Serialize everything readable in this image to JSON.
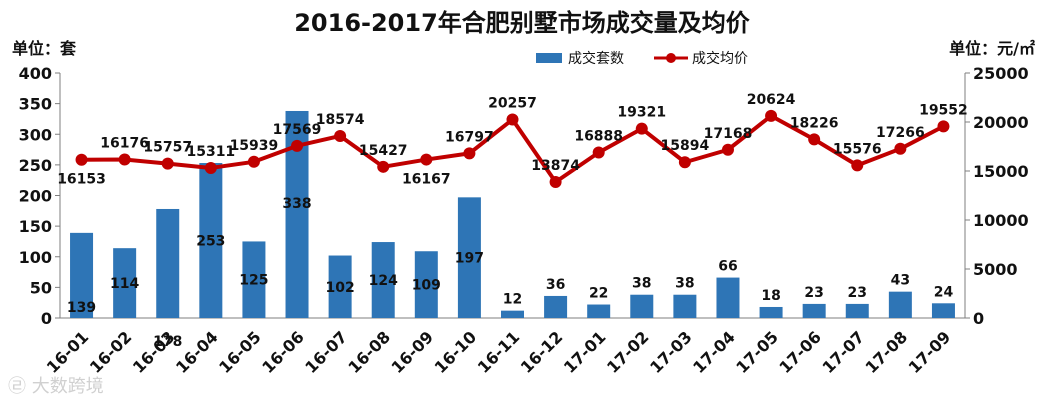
{
  "chart_data": {
    "type": "bar+line",
    "title": "2016-2017年合肥别墅市场成交量及均价",
    "left_unit": "单位：套",
    "right_unit": "单位：元/㎡",
    "categories": [
      "16-01",
      "16-02",
      "16-03",
      "16-04",
      "16-05",
      "16-06",
      "16-07",
      "16-08",
      "16-09",
      "16-10",
      "16-11",
      "16-12",
      "17-01",
      "17-02",
      "17-03",
      "17-04",
      "17-05",
      "17-06",
      "17-07",
      "17-08",
      "17-09"
    ],
    "series": [
      {
        "name": "成交套数",
        "type": "bar",
        "axis": "left",
        "color": "#2e75b6",
        "values": [
          139,
          114,
          178,
          253,
          125,
          338,
          102,
          124,
          109,
          197,
          12,
          36,
          22,
          38,
          38,
          66,
          18,
          23,
          23,
          43,
          24
        ]
      },
      {
        "name": "成交均价",
        "type": "line",
        "axis": "right",
        "color": "#c00000",
        "values": [
          16153,
          16176,
          15757,
          15311,
          15939,
          17569,
          18574,
          15427,
          16167,
          16797,
          20257,
          13874,
          16888,
          19321,
          15894,
          17168,
          20624,
          18226,
          15576,
          17266,
          19552
        ]
      }
    ],
    "ylim_left": [
      0,
      400
    ],
    "ylim_right": [
      0,
      25000
    ],
    "yticks_left": [
      "0",
      "50",
      "100",
      "150",
      "200",
      "250",
      "300",
      "350",
      "400"
    ],
    "yticks_right": [
      "0",
      "5000",
      "10000",
      "15000",
      "20000",
      "25000"
    ],
    "legend_position": "top-center",
    "grid": false
  },
  "watermark": "大数跨境"
}
